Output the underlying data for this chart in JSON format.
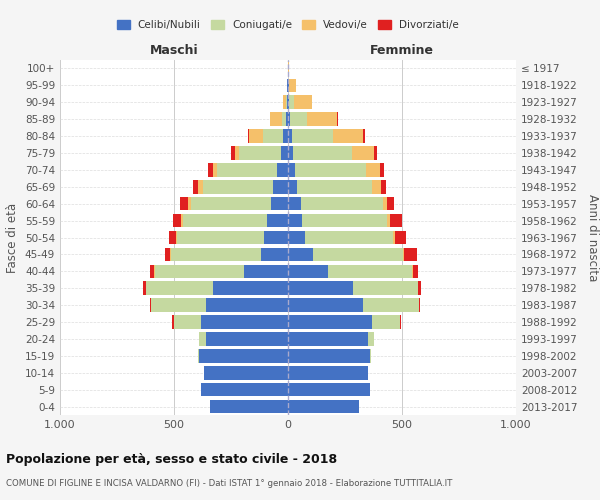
{
  "age_groups": [
    "0-4",
    "5-9",
    "10-14",
    "15-19",
    "20-24",
    "25-29",
    "30-34",
    "35-39",
    "40-44",
    "45-49",
    "50-54",
    "55-59",
    "60-64",
    "65-69",
    "70-74",
    "75-79",
    "80-84",
    "85-89",
    "90-94",
    "95-99",
    "100+"
  ],
  "birth_years": [
    "2013-2017",
    "2008-2012",
    "2003-2007",
    "1998-2002",
    "1993-1997",
    "1988-1992",
    "1983-1987",
    "1978-1982",
    "1973-1977",
    "1968-1972",
    "1963-1967",
    "1958-1962",
    "1953-1957",
    "1948-1952",
    "1943-1947",
    "1938-1942",
    "1933-1937",
    "1928-1932",
    "1923-1927",
    "1918-1922",
    "≤ 1917"
  ],
  "colors": {
    "celibi": "#4472c4",
    "coniugati": "#c5d9a0",
    "vedovi": "#f5c06a",
    "divorziati": "#e02020"
  },
  "males": {
    "celibi": [
      340,
      380,
      370,
      390,
      360,
      380,
      360,
      330,
      195,
      120,
      105,
      90,
      75,
      65,
      50,
      30,
      20,
      8,
      5,
      3,
      2
    ],
    "coniugati": [
      0,
      0,
      0,
      5,
      30,
      120,
      240,
      295,
      390,
      395,
      380,
      370,
      350,
      310,
      260,
      185,
      90,
      20,
      5,
      0,
      0
    ],
    "vedovi": [
      0,
      0,
      0,
      0,
      0,
      2,
      0,
      0,
      2,
      3,
      5,
      8,
      12,
      18,
      20,
      18,
      60,
      50,
      10,
      2,
      0
    ],
    "divorziati": [
      0,
      0,
      0,
      0,
      0,
      5,
      5,
      10,
      18,
      22,
      30,
      35,
      35,
      25,
      22,
      18,
      5,
      0,
      0,
      0,
      0
    ]
  },
  "females": {
    "celibi": [
      310,
      360,
      350,
      360,
      350,
      370,
      330,
      285,
      175,
      110,
      75,
      60,
      55,
      40,
      30,
      22,
      18,
      8,
      5,
      3,
      2
    ],
    "coniugati": [
      0,
      0,
      0,
      5,
      25,
      120,
      245,
      285,
      370,
      395,
      385,
      375,
      360,
      330,
      310,
      260,
      180,
      75,
      20,
      3,
      0
    ],
    "vedovi": [
      0,
      0,
      0,
      0,
      0,
      0,
      0,
      2,
      3,
      5,
      8,
      12,
      20,
      40,
      65,
      95,
      130,
      130,
      80,
      30,
      2
    ],
    "divorziati": [
      0,
      0,
      0,
      0,
      2,
      5,
      5,
      10,
      20,
      55,
      50,
      55,
      28,
      22,
      18,
      15,
      8,
      5,
      0,
      0,
      0
    ]
  },
  "title": "Popolazione per età, sesso e stato civile - 2018",
  "subtitle": "COMUNE DI FIGLINE E INCISA VALDARNO (FI) - Dati ISTAT 1° gennaio 2018 - Elaborazione TUTTITALIA.IT",
  "xlabel_left": "Maschi",
  "xlabel_right": "Femmine",
  "ylabel": "Fasce di età",
  "ylabel_right": "Anni di nascita",
  "xlim": 1000,
  "background_color": "#f5f5f5",
  "plot_bg": "#ffffff",
  "legend_labels": [
    "Celibi/Nubili",
    "Coniugati/e",
    "Vedovi/e",
    "Divorziati/e"
  ]
}
